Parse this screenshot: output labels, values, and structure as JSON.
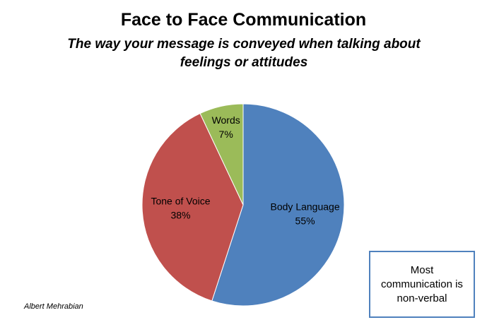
{
  "chart_data": {
    "type": "pie",
    "title": "Face to Face Communication",
    "subtitle": "The way your message is conveyed when talking about feelings or attitudes",
    "categories": [
      "Body Language",
      "Tone of Voice",
      "Words"
    ],
    "values": [
      55,
      38,
      7
    ],
    "value_labels": [
      "55%",
      "38%",
      "7%"
    ],
    "colors": [
      "#4f81bd",
      "#c0504d",
      "#9bbb59"
    ],
    "annotations": [
      "Albert Mehrabian",
      "Most communication is non-verbal"
    ]
  }
}
